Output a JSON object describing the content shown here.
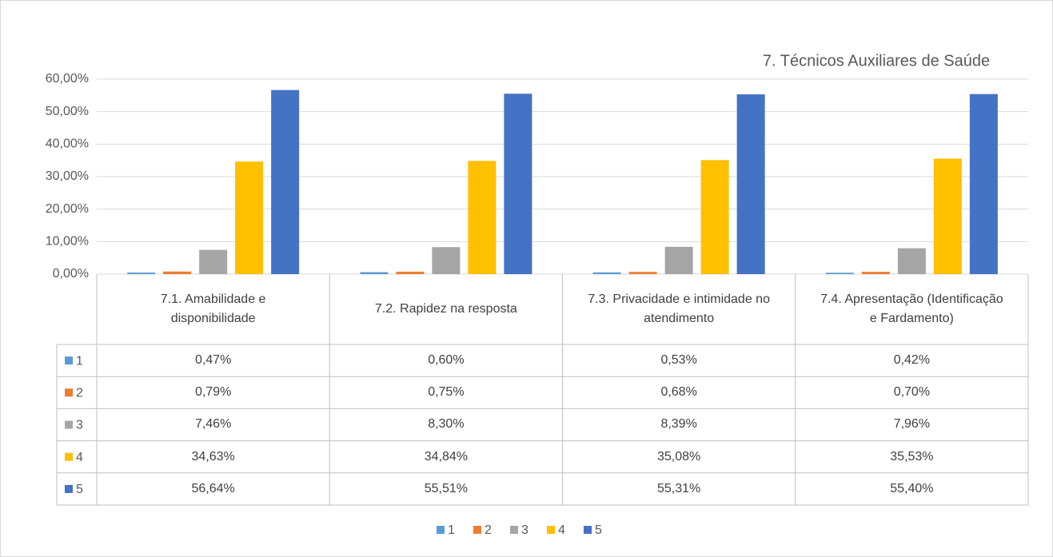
{
  "chart_data": {
    "type": "bar",
    "title": "7. Técnicos Auxiliares de Saúde",
    "categories": [
      "7.1. Amabilidade e disponibilidade",
      "7.2. Rapidez na resposta",
      "7.3. Privacidade e intimidade no atendimento",
      "7.4. Apresentação (Identificação e Fardamento)"
    ],
    "series": [
      {
        "name": "1",
        "color": "#5b9bd5",
        "values": [
          0.47,
          0.6,
          0.53,
          0.42
        ],
        "value_labels": [
          "0,47%",
          "0,60%",
          "0,53%",
          "0,42%"
        ]
      },
      {
        "name": "2",
        "color": "#ed7d31",
        "values": [
          0.79,
          0.75,
          0.68,
          0.7
        ],
        "value_labels": [
          "0,79%",
          "0,75%",
          "0,68%",
          "0,70%"
        ]
      },
      {
        "name": "3",
        "color": "#a5a5a5",
        "values": [
          7.46,
          8.3,
          8.39,
          7.96
        ],
        "value_labels": [
          "7,46%",
          "8,30%",
          "8,39%",
          "7,96%"
        ]
      },
      {
        "name": "4",
        "color": "#ffc000",
        "values": [
          34.63,
          34.84,
          35.08,
          35.53
        ],
        "value_labels": [
          "34,63%",
          "34,84%",
          "35,08%",
          "35,53%"
        ]
      },
      {
        "name": "5",
        "color": "#4472c4",
        "values": [
          56.64,
          55.51,
          55.31,
          55.4
        ],
        "value_labels": [
          "56,64%",
          "55,51%",
          "55,31%",
          "55,40%"
        ]
      }
    ],
    "ylim": [
      0,
      60
    ],
    "yticks": [
      {
        "value": 0,
        "label": "0,00%"
      },
      {
        "value": 10,
        "label": "10,00%"
      },
      {
        "value": 20,
        "label": "20,00%"
      },
      {
        "value": 30,
        "label": "30,00%"
      },
      {
        "value": 40,
        "label": "40,00%"
      },
      {
        "value": 50,
        "label": "50,00%"
      },
      {
        "value": 60,
        "label": "60,00%"
      }
    ],
    "grid": true,
    "legend": "bottom"
  }
}
